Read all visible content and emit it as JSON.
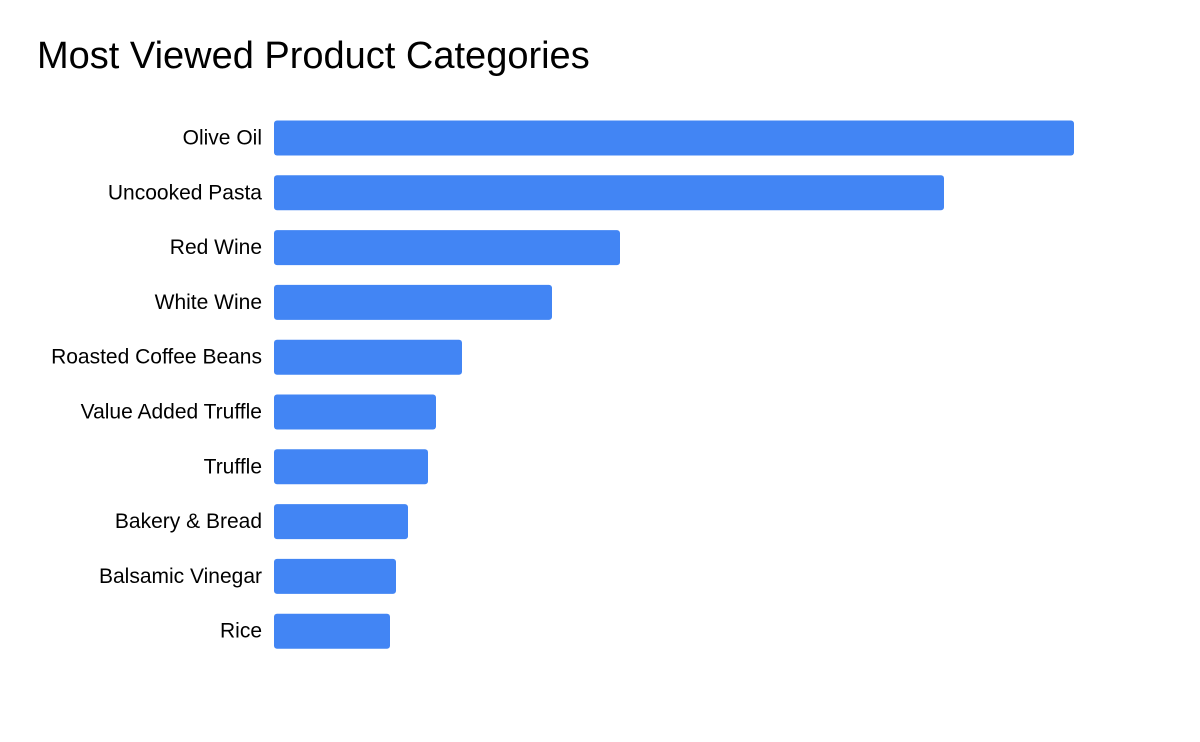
{
  "title": "Most Viewed Product Categories",
  "chart_data": {
    "type": "bar",
    "orientation": "horizontal",
    "title": "Most Viewed Product Categories",
    "categories": [
      "Olive Oil",
      "Uncooked Pasta",
      "Red Wine",
      "White Wine",
      "Roasted Coffee Beans",
      "Value Added Truffle",
      "Truffle",
      "Bakery & Bread",
      "Balsamic Vinegar",
      "Rice"
    ],
    "values": [
      100,
      83.75,
      43.25,
      34.75,
      23.5,
      20.25,
      19.25,
      16.75,
      15.25,
      14.5
    ],
    "xlim": [
      0,
      100
    ],
    "xlabel": "",
    "ylabel": "",
    "grid": false,
    "axis_ticks_visible": false,
    "bar_color": "#4285f4"
  }
}
